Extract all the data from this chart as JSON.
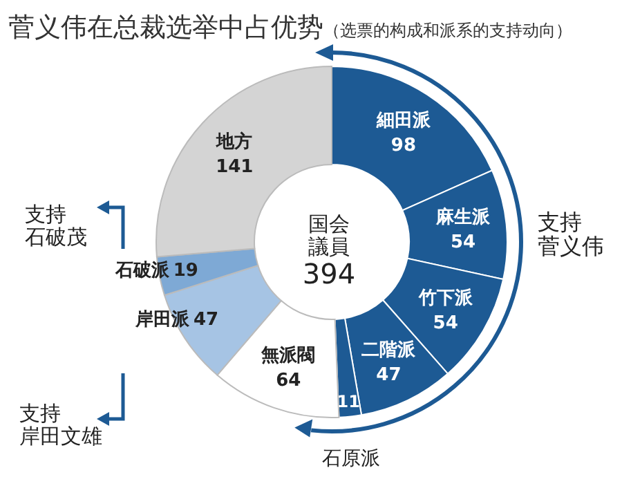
{
  "chart_data": {
    "type": "donut",
    "title": "菅义伟在总裁选举中占优势",
    "subtitle": "（选票的构成和派系的支持动向）",
    "categories": [
      "細田派",
      "麻生派",
      "竹下派",
      "二階派",
      "石原派",
      "無派閥",
      "岸田派",
      "石破派",
      "地方"
    ],
    "values": [
      98,
      54,
      54,
      47,
      11,
      64,
      47,
      19,
      141
    ],
    "colors": [
      "#1d5a94",
      "#1d5a94",
      "#1d5a94",
      "#1d5a94",
      "#1d5a94",
      "#ffffff",
      "#a6c4e4",
      "#7ea9d5",
      "#d4d4d4"
    ],
    "data_labels": true,
    "annotations": [
      "国会議員",
      "394",
      "支持菅义伟",
      "支持石破茂",
      "支持岸田文雄"
    ]
  }
}
